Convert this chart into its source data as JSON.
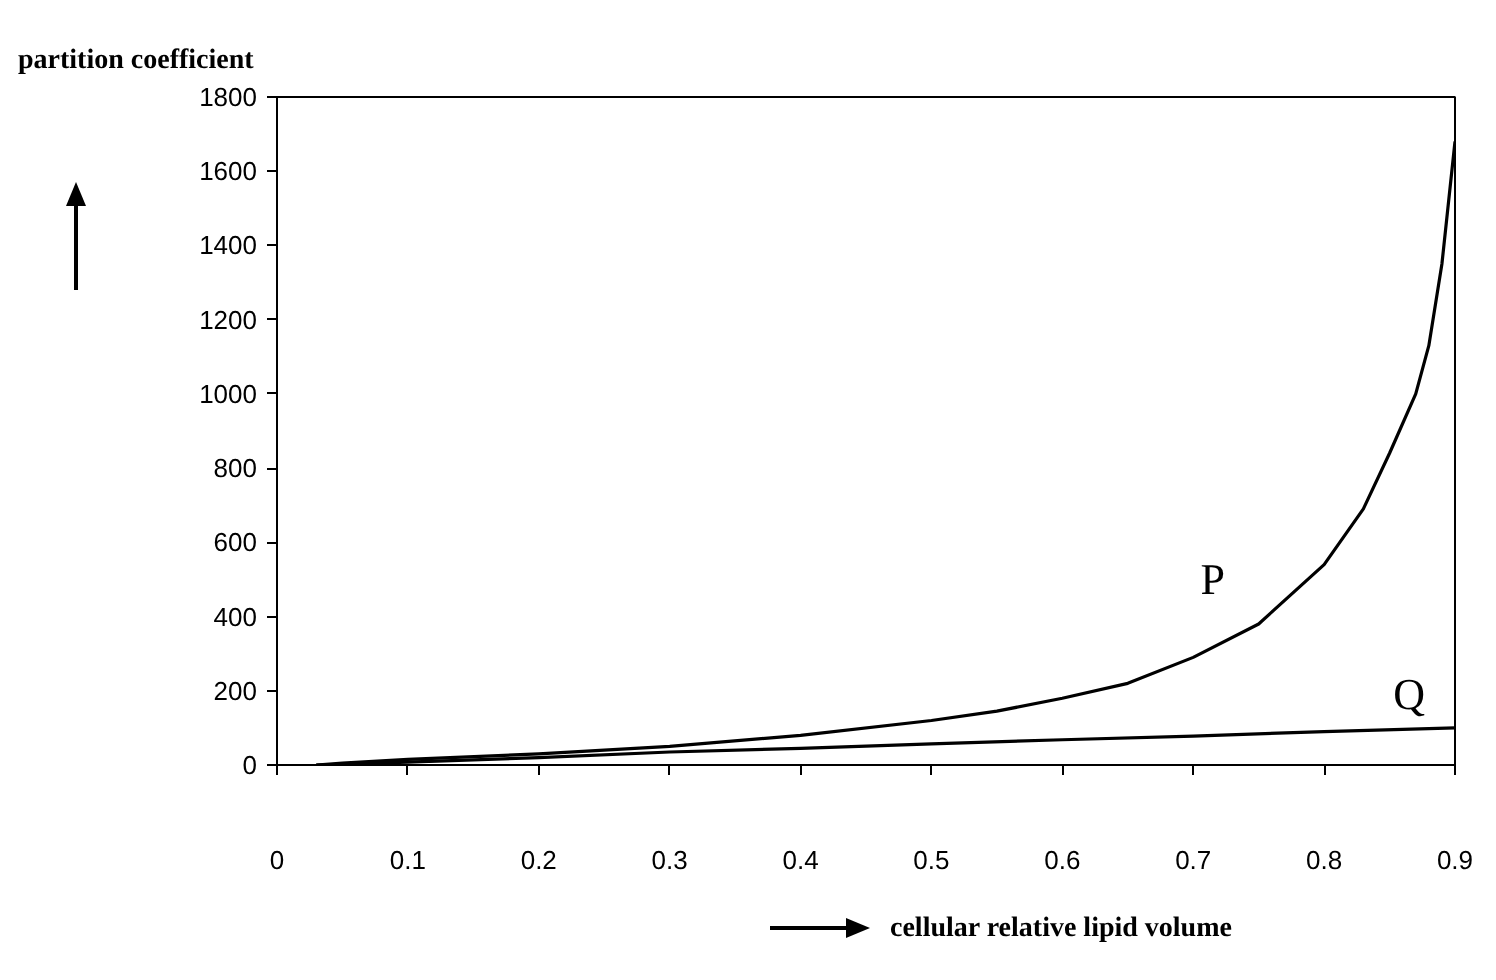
{
  "chart_data": {
    "type": "line",
    "xlabel": "cellular relative lipid volume",
    "ylabel": "partition coefficient",
    "xlim": [
      0,
      0.9
    ],
    "ylim": [
      0,
      1800
    ],
    "xticks": [
      0,
      0.1,
      0.2,
      0.3,
      0.4,
      0.5,
      0.6,
      0.7,
      0.8,
      0.9
    ],
    "yticks": [
      0,
      200,
      400,
      600,
      800,
      1000,
      1200,
      1400,
      1600,
      1800
    ],
    "grid": false,
    "marker": "none",
    "line_style": "solid",
    "series": [
      {
        "color": "#000000",
        "x": [
          0.03,
          0.05,
          0.1,
          0.2,
          0.3,
          0.4,
          0.5,
          0.55,
          0.6,
          0.65,
          0.7,
          0.75,
          0.8,
          0.83,
          0.85,
          0.87,
          0.88,
          0.89,
          0.9
        ],
        "values": [
          0,
          5,
          15,
          30,
          50,
          80,
          120,
          145,
          180,
          220,
          290,
          380,
          540,
          690,
          840,
          1000,
          1130,
          1350,
          1680
        ]
      },
      {
        "color": "#000000",
        "x": [
          0.03,
          0.1,
          0.2,
          0.3,
          0.4,
          0.5,
          0.6,
          0.7,
          0.8,
          0.9
        ],
        "values": [
          0,
          8,
          20,
          35,
          45,
          57,
          68,
          78,
          90,
          100
        ]
      }
    ],
    "annotations": [
      "P",
      "Q"
    ]
  }
}
